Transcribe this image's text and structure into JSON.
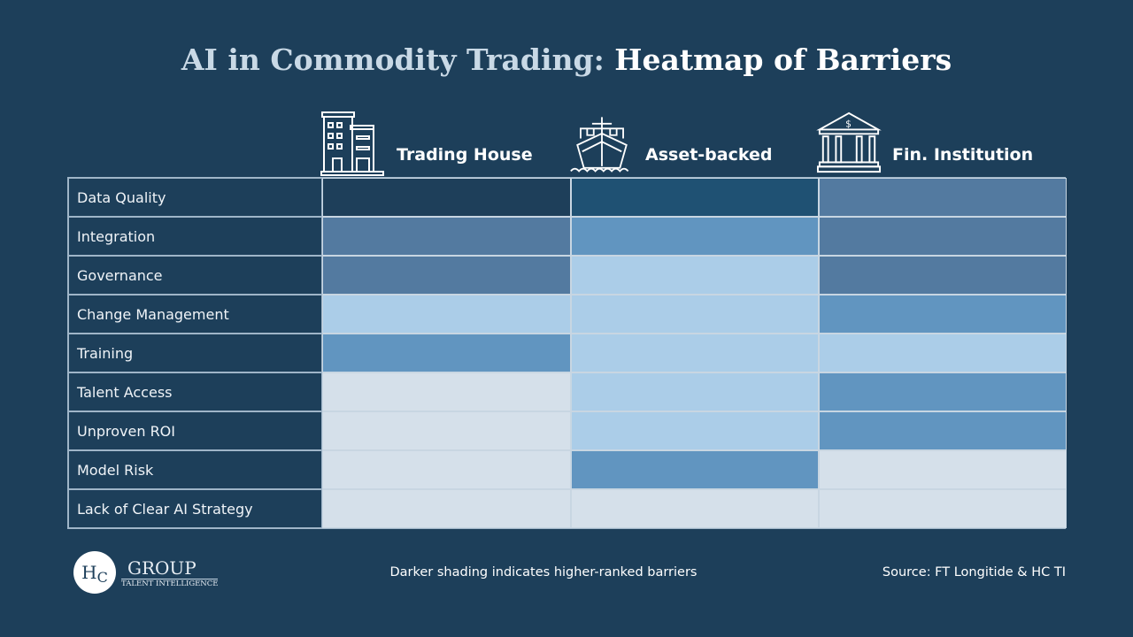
{
  "chart_data": {
    "type": "heatmap",
    "title": "AI in Commodity Trading: Heatmap of Barriers",
    "title_parts": [
      "AI in Commodity Trading:",
      "Heatmap of Barriers"
    ],
    "columns": [
      "Trading House",
      "Asset-backed",
      "Fin. Institution"
    ],
    "column_icons": [
      "office-building-icon",
      "cargo-ship-icon",
      "bank-icon"
    ],
    "rows": [
      "Data Quality",
      "Integration",
      "Governance",
      "Change Management",
      "Training",
      "Talent Access",
      "Unproven ROI",
      "Model Risk",
      "Lack of Clear AI Strategy"
    ],
    "shade_levels": [
      [
        6,
        5,
        4
      ],
      [
        4,
        3,
        4
      ],
      [
        4,
        2,
        4
      ],
      [
        2,
        2,
        3
      ],
      [
        3,
        2,
        2
      ],
      [
        1,
        2,
        3
      ],
      [
        1,
        2,
        3
      ],
      [
        1,
        3,
        1
      ],
      [
        1,
        1,
        1
      ]
    ],
    "shade_colors": {
      "1": "#d5e0ea",
      "2": "#abcde8",
      "3": "#6195c0",
      "4": "#537aa0",
      "5": "#1f5173",
      "6": "#1e3f5a"
    },
    "legend_note": "Darker shading indicates higher-ranked barriers"
  },
  "footer": {
    "logo_mark": "HC",
    "logo_group": "GROUP",
    "logo_sub": "TALENT INTELLIGENCE",
    "source": "Source: FT Longitide & HC TI"
  }
}
